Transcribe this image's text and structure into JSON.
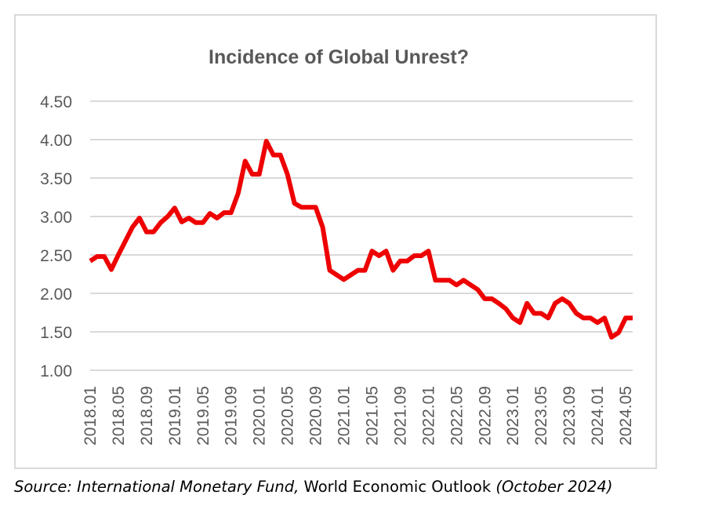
{
  "chart_data": {
    "type": "line",
    "title": "Incidence of Global Unrest?",
    "xlabel": "",
    "ylabel": "",
    "ylim": [
      1.0,
      4.5
    ],
    "yticks": [
      "1.00",
      "1.50",
      "2.00",
      "2.50",
      "3.00",
      "3.50",
      "4.00",
      "4.50"
    ],
    "xtick_labels": [
      "2018.01",
      "2018.05",
      "2018.09",
      "2019.01",
      "2019.05",
      "2019.09",
      "2020.01",
      "2020.05",
      "2020.09",
      "2021.01",
      "2021.05",
      "2021.09",
      "2022.01",
      "2022.05",
      "2022.09",
      "2023.01",
      "2023.05",
      "2023.09",
      "2024.01",
      "2024.05"
    ],
    "grid": true,
    "legend": "none",
    "line_color": "#ee0000",
    "x": [
      "2018.01",
      "2018.02",
      "2018.03",
      "2018.04",
      "2018.05",
      "2018.06",
      "2018.07",
      "2018.08",
      "2018.09",
      "2018.10",
      "2018.11",
      "2018.12",
      "2019.01",
      "2019.02",
      "2019.03",
      "2019.04",
      "2019.05",
      "2019.06",
      "2019.07",
      "2019.08",
      "2019.09",
      "2019.10",
      "2019.11",
      "2019.12",
      "2020.01",
      "2020.02",
      "2020.03",
      "2020.04",
      "2020.05",
      "2020.06",
      "2020.07",
      "2020.08",
      "2020.09",
      "2020.10",
      "2020.11",
      "2020.12",
      "2021.01",
      "2021.02",
      "2021.03",
      "2021.04",
      "2021.05",
      "2021.06",
      "2021.07",
      "2021.08",
      "2021.09",
      "2021.10",
      "2021.11",
      "2021.12",
      "2022.01",
      "2022.02",
      "2022.03",
      "2022.04",
      "2022.05",
      "2022.06",
      "2022.07",
      "2022.08",
      "2022.09",
      "2022.10",
      "2022.11",
      "2022.12",
      "2023.01",
      "2023.02",
      "2023.03",
      "2023.04",
      "2023.05",
      "2023.06",
      "2023.07",
      "2023.08",
      "2023.09",
      "2023.10",
      "2023.11",
      "2023.12",
      "2024.01",
      "2024.02",
      "2024.03",
      "2024.04",
      "2024.05",
      "2024.06"
    ],
    "series": [
      {
        "values": [
          2.42,
          2.48,
          2.48,
          2.31,
          2.5,
          2.68,
          2.86,
          2.98,
          2.8,
          2.8,
          2.92,
          3.0,
          3.11,
          2.93,
          2.98,
          2.92,
          2.92,
          3.04,
          2.98,
          3.05,
          3.05,
          3.3,
          3.72,
          3.55,
          3.55,
          3.98,
          3.8,
          3.8,
          3.55,
          3.17,
          3.12,
          3.12,
          3.12,
          2.86,
          2.3,
          2.24,
          2.18,
          2.24,
          2.3,
          2.3,
          2.55,
          2.49,
          2.55,
          2.3,
          2.42,
          2.42,
          2.49,
          2.49,
          2.55,
          2.17,
          2.17,
          2.17,
          2.11,
          2.17,
          2.11,
          2.05,
          1.93,
          1.93,
          1.87,
          1.8,
          1.68,
          1.62,
          1.87,
          1.74,
          1.74,
          1.68,
          1.87,
          1.93,
          1.87,
          1.74,
          1.68,
          1.68,
          1.62,
          1.68,
          1.43,
          1.49,
          1.68,
          1.68
        ]
      }
    ]
  },
  "source": {
    "prefix": "Source: International Monetary Fund,",
    "publication": " World Economic Outlook ",
    "suffix": "(October 2024)"
  }
}
